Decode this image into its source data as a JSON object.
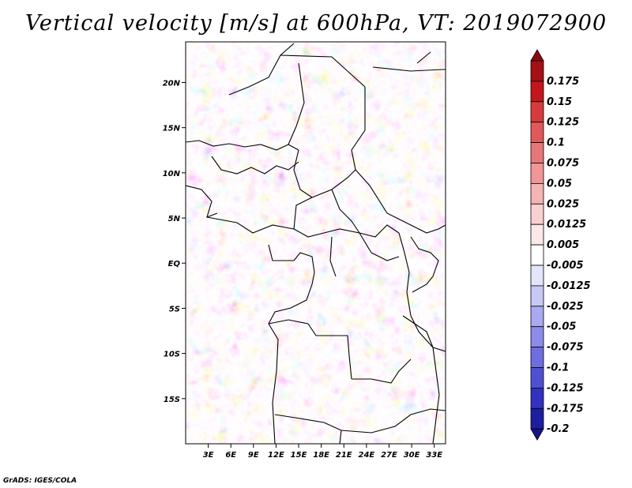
{
  "title": "Vertical velocity [m/s] at 600hPa, VT: 2019072900",
  "credit": "GrADS: IGES/COLA",
  "map": {
    "lon_range": [
      0,
      34.5
    ],
    "lat_range": [
      -20,
      24.5
    ],
    "lat_ticks": [
      {
        "value": 20,
        "label": "20N"
      },
      {
        "value": 15,
        "label": "15N"
      },
      {
        "value": 10,
        "label": "10N"
      },
      {
        "value": 5,
        "label": "5N"
      },
      {
        "value": 0,
        "label": "EQ"
      },
      {
        "value": -5,
        "label": "5S"
      },
      {
        "value": -10,
        "label": "10S"
      },
      {
        "value": -15,
        "label": "15S"
      }
    ],
    "lon_ticks": [
      {
        "value": 3,
        "label": "3E"
      },
      {
        "value": 6,
        "label": "6E"
      },
      {
        "value": 9,
        "label": "9E"
      },
      {
        "value": 12,
        "label": "12E"
      },
      {
        "value": 15,
        "label": "15E"
      },
      {
        "value": 18,
        "label": "18E"
      },
      {
        "value": 21,
        "label": "21E"
      },
      {
        "value": 24,
        "label": "24E"
      },
      {
        "value": 27,
        "label": "27E"
      },
      {
        "value": 30,
        "label": "30E"
      },
      {
        "value": 33,
        "label": "33E"
      }
    ]
  },
  "colorbar": {
    "levels": [
      {
        "label": "0.175",
        "color": "#a50f15"
      },
      {
        "label": "0.15",
        "color": "#c4161c"
      },
      {
        "label": "0.125",
        "color": "#d73c3c"
      },
      {
        "label": "0.1",
        "color": "#e15a5a"
      },
      {
        "label": "0.075",
        "color": "#e87878"
      },
      {
        "label": "0.05",
        "color": "#f09696"
      },
      {
        "label": "0.025",
        "color": "#f5b4b4"
      },
      {
        "label": "0.0125",
        "color": "#f9d0d0"
      },
      {
        "label": "0.005",
        "color": "#fce8e8"
      },
      {
        "label": "-0.005",
        "color": "#ffffff"
      },
      {
        "label": "-0.0125",
        "color": "#e4e4fa"
      },
      {
        "label": "-0.025",
        "color": "#c8c8f5"
      },
      {
        "label": "-0.05",
        "color": "#aaaaf0"
      },
      {
        "label": "-0.075",
        "color": "#8c8ceb"
      },
      {
        "label": "-0.1",
        "color": "#6e6ee1"
      },
      {
        "label": "-0.125",
        "color": "#5050d2"
      },
      {
        "label": "-0.175",
        "color": "#3232be"
      },
      {
        "label": "-0.2",
        "color": "#1e1ea0"
      }
    ],
    "top_color": "#8b0a0f",
    "bottom_color": "#14148c"
  }
}
